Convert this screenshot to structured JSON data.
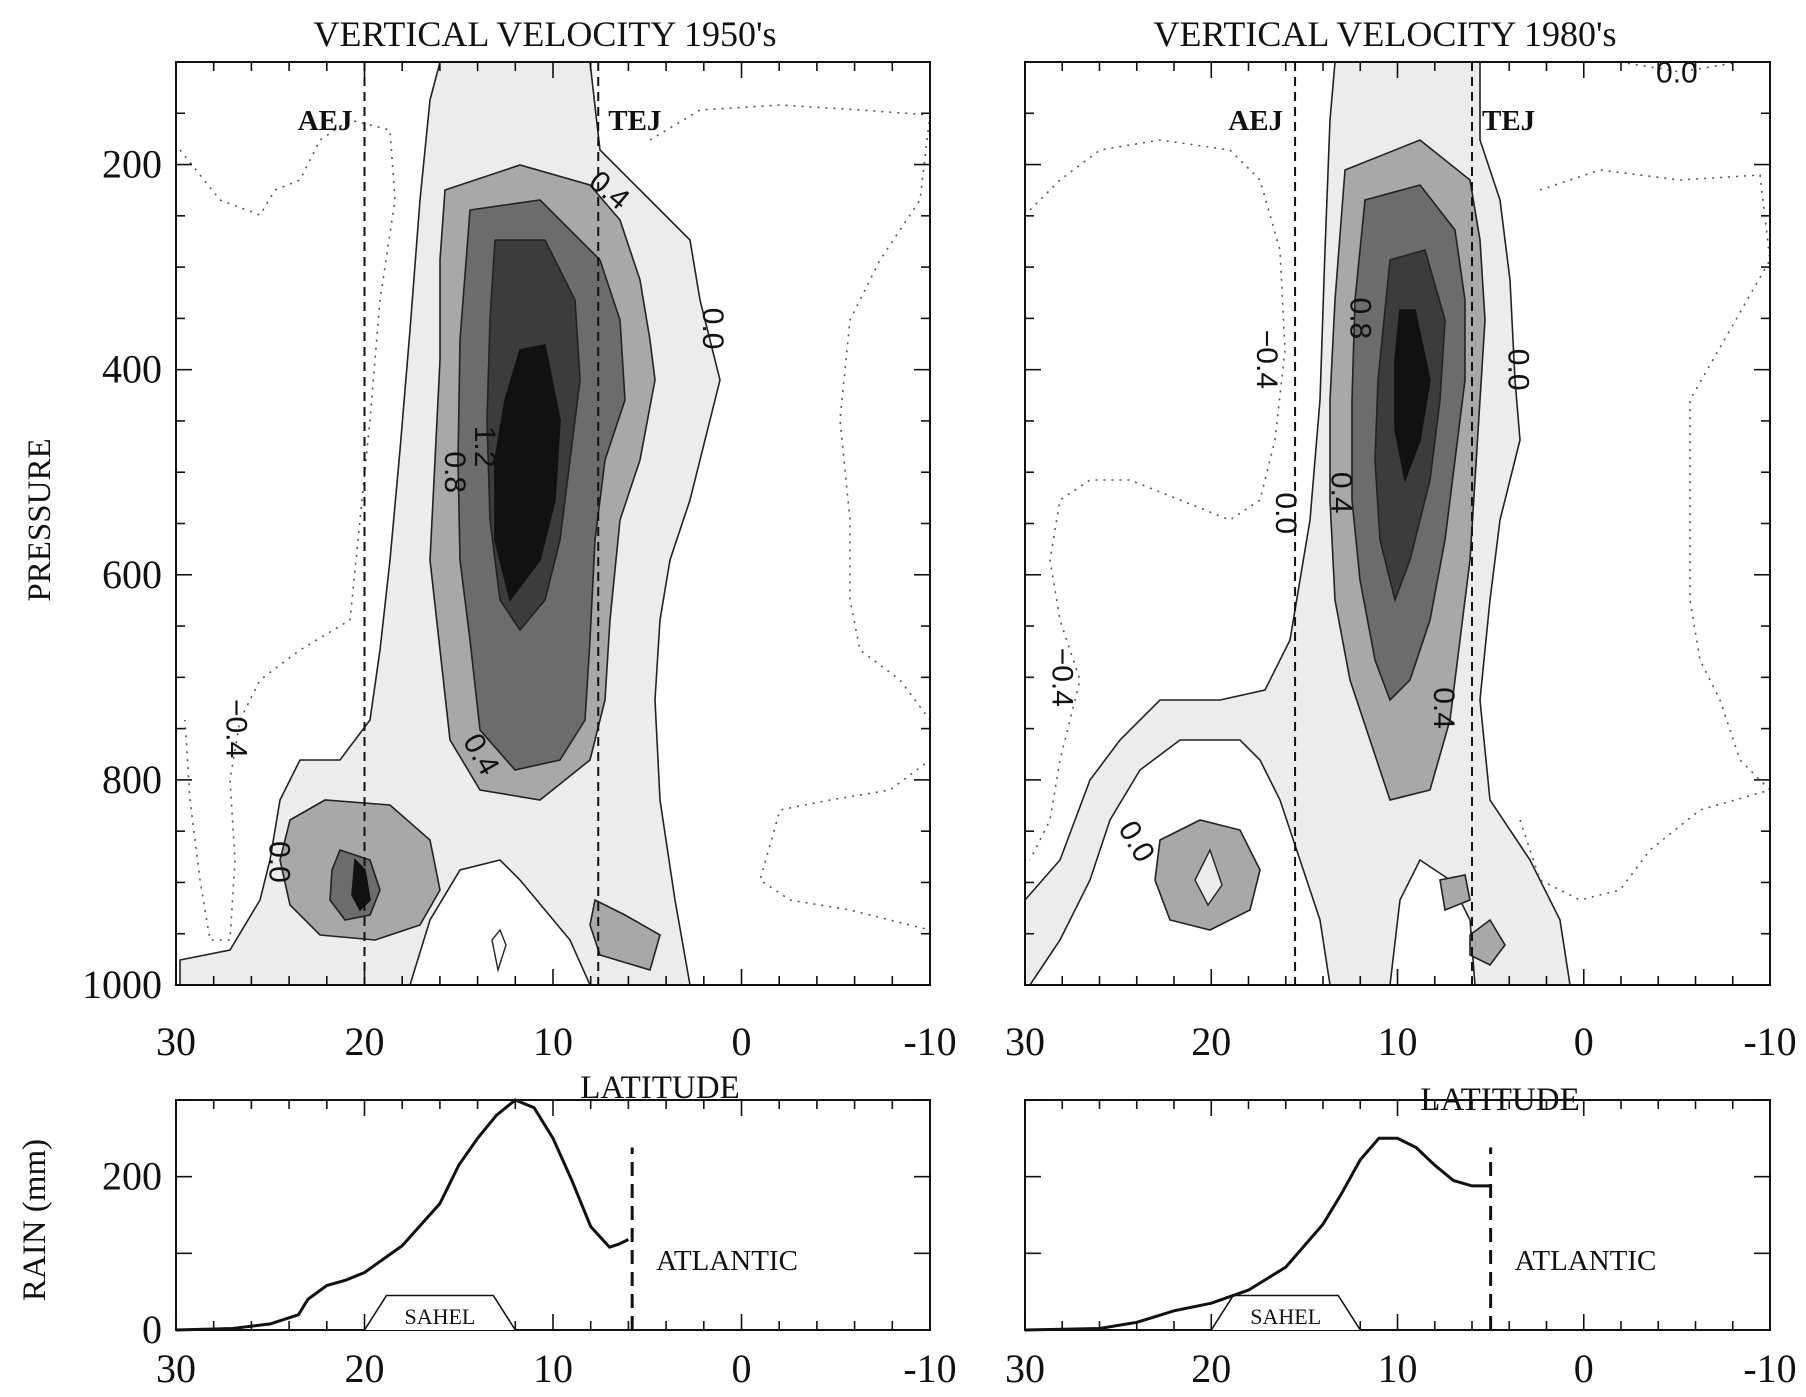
{
  "chart_data": [
    {
      "type": "contour",
      "title": "VERTICAL VELOCITY  1950's",
      "ylabel": "PRESSURE",
      "xlabel": "LATITUDE",
      "xlim": [
        30,
        -10
      ],
      "ylim": [
        1000,
        100
      ],
      "xticks": [
        "30",
        "20",
        "10",
        "0",
        "-10"
      ],
      "yticks": [
        "200",
        "400",
        "600",
        "800",
        "1000"
      ],
      "jets": [
        {
          "name": "AEJ",
          "lat": 20
        },
        {
          "name": "TEJ",
          "lat": 7.6
        }
      ],
      "contour_labels": [
        {
          "text": "0.4",
          "lat": 7.0,
          "p": 225,
          "rotate": 40
        },
        {
          "text": "0.0",
          "lat": 1.5,
          "p": 360,
          "rotate": 90
        },
        {
          "text": "0.8",
          "lat": 15.2,
          "p": 500,
          "rotate": 90
        },
        {
          "text": "1.2",
          "lat": 13.6,
          "p": 475,
          "rotate": 90
        },
        {
          "text": "0.4",
          "lat": 13.8,
          "p": 775,
          "rotate": 60
        },
        {
          "text": "−0.4",
          "lat": 26.8,
          "p": 750,
          "rotate": 90
        },
        {
          "text": "0.0",
          "lat": 24.5,
          "p": 880,
          "rotate": 90
        }
      ]
    },
    {
      "type": "contour",
      "title": "VERTICAL VELOCITY  1980's",
      "xlabel": "LATITUDE",
      "xlim": [
        30,
        -10
      ],
      "ylim": [
        1000,
        100
      ],
      "xticks": [
        "30",
        "20",
        "10",
        "0",
        "-10"
      ],
      "jets": [
        {
          "name": "AEJ",
          "lat": 15.5
        },
        {
          "name": "TEJ",
          "lat": 6.0
        }
      ],
      "contour_labels": [
        {
          "text": "0.0",
          "lat": -5.0,
          "p": 110,
          "rotate": 0
        },
        {
          "text": "0.8",
          "lat": 12.0,
          "p": 350,
          "rotate": 90
        },
        {
          "text": "−0.4",
          "lat": 17.0,
          "p": 390,
          "rotate": 90
        },
        {
          "text": "0.0",
          "lat": 3.5,
          "p": 400,
          "rotate": 90
        },
        {
          "text": "0.4",
          "lat": 13.0,
          "p": 520,
          "rotate": 90
        },
        {
          "text": "0.0",
          "lat": 16.0,
          "p": 540,
          "rotate": 90
        },
        {
          "text": "−0.4",
          "lat": 28.0,
          "p": 700,
          "rotate": 90
        },
        {
          "text": "0.4",
          "lat": 7.5,
          "p": 730,
          "rotate": 90
        },
        {
          "text": "0.0",
          "lat": 24.0,
          "p": 860,
          "rotate": 60
        }
      ]
    },
    {
      "type": "line",
      "ylabel": "RAIN (mm)",
      "xlim": [
        30,
        -10
      ],
      "ylim": [
        0,
        300
      ],
      "xticks": [
        "30",
        "20",
        "10",
        "0",
        "-10"
      ],
      "yticks": [
        "0",
        "200"
      ],
      "marker_lat": 5.8,
      "marker_label": "ATLANTIC",
      "region_label": "SAHEL",
      "region": [
        20,
        12
      ],
      "x": [
        30,
        27,
        25,
        23.5,
        23,
        22,
        21,
        20,
        18,
        16,
        15,
        14,
        13,
        12,
        11,
        10,
        9,
        8,
        7,
        6.5,
        6
      ],
      "y": [
        0,
        2,
        8,
        20,
        40,
        58,
        65,
        75,
        110,
        165,
        215,
        250,
        280,
        300,
        290,
        250,
        195,
        135,
        108,
        112,
        118
      ]
    },
    {
      "type": "line",
      "xlim": [
        30,
        -10
      ],
      "ylim": [
        0,
        300
      ],
      "xticks": [
        "30",
        "20",
        "10",
        "0",
        "-10"
      ],
      "marker_lat": 5.0,
      "marker_label": "ATLANTIC",
      "region_label": "SAHEL",
      "region": [
        20,
        12
      ],
      "x": [
        30,
        26,
        24,
        22,
        20,
        18,
        16,
        14,
        13,
        12,
        11,
        10,
        9,
        8,
        7,
        6,
        5
      ],
      "y": [
        0,
        2,
        10,
        25,
        35,
        52,
        82,
        138,
        178,
        222,
        250,
        250,
        238,
        215,
        195,
        188,
        188
      ]
    }
  ]
}
